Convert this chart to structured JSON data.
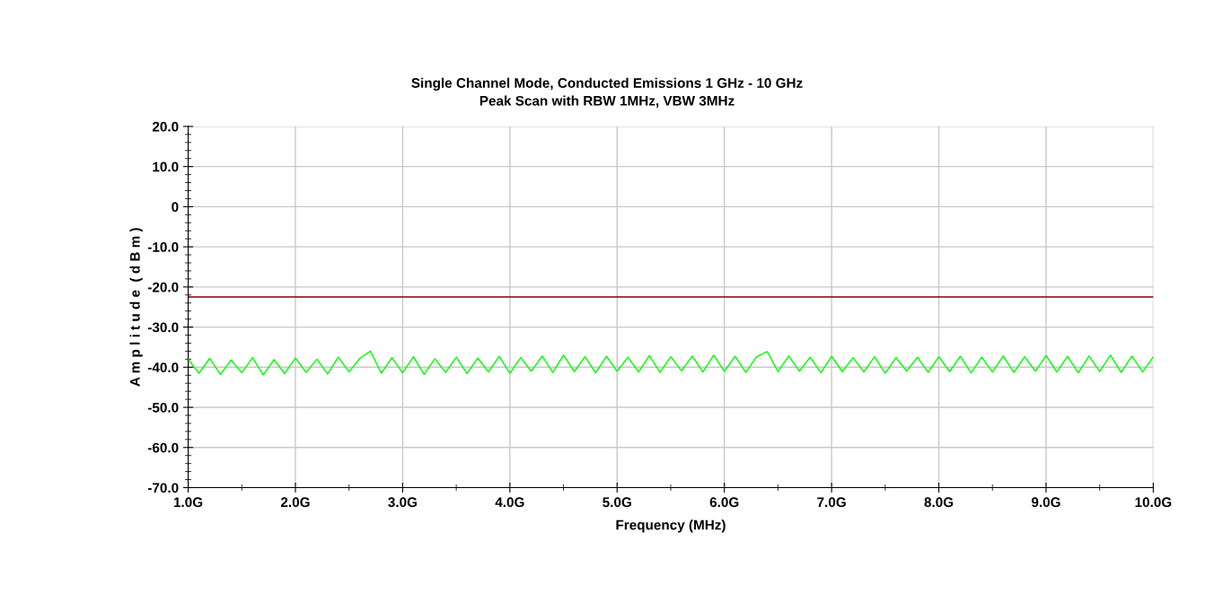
{
  "chart_data": {
    "type": "line",
    "subtitle": "Single Channel Mode, Conducted Emissions 1 GHz - 10 GHz\nPeak Scan with RBW 1MHz, VBW 3MHz",
    "xlabel": "Frequency (MHz)",
    "ylabel": "A m p l i t u d e  ( d B m )",
    "x": [
      1.0,
      1.1,
      1.2,
      1.3,
      1.4,
      1.5,
      1.6,
      1.7,
      1.8,
      1.9,
      2.0,
      2.1,
      2.2,
      2.3,
      2.4,
      2.5,
      2.6,
      2.7,
      2.8,
      2.9,
      3.0,
      3.1,
      3.2,
      3.3,
      3.4,
      3.5,
      3.6,
      3.7,
      3.8,
      3.9,
      4.0,
      4.1,
      4.2,
      4.3,
      4.4,
      4.5,
      4.6,
      4.7,
      4.8,
      4.9,
      5.0,
      5.1,
      5.2,
      5.3,
      5.4,
      5.5,
      5.6,
      5.7,
      5.8,
      5.9,
      6.0,
      6.1,
      6.2,
      6.3,
      6.4,
      6.5,
      6.6,
      6.7,
      6.8,
      6.9,
      7.0,
      7.1,
      7.2,
      7.3,
      7.4,
      7.5,
      7.6,
      7.7,
      7.8,
      7.9,
      8.0,
      8.1,
      8.2,
      8.3,
      8.4,
      8.5,
      8.6,
      8.7,
      8.8,
      8.9,
      9.0,
      9.1,
      9.2,
      9.3,
      9.4,
      9.5,
      9.6,
      9.7,
      9.8,
      9.9,
      10.0
    ],
    "series": [
      {
        "color": "#00ff00",
        "values": [
          -38.0,
          -41.5,
          -37.8,
          -41.8,
          -38.2,
          -41.4,
          -37.6,
          -41.9,
          -38.1,
          -41.6,
          -37.7,
          -41.3,
          -38.0,
          -41.7,
          -37.5,
          -41.2,
          -37.8,
          -36.0,
          -41.5,
          -37.6,
          -41.4,
          -37.4,
          -41.8,
          -37.9,
          -41.3,
          -37.5,
          -41.6,
          -37.7,
          -41.2,
          -37.3,
          -41.5,
          -37.6,
          -41.0,
          -37.2,
          -41.3,
          -37.0,
          -41.1,
          -37.4,
          -41.4,
          -37.3,
          -41.0,
          -37.5,
          -41.2,
          -37.1,
          -41.3,
          -37.4,
          -40.9,
          -37.2,
          -41.2,
          -37.0,
          -41.0,
          -37.3,
          -41.3,
          -37.4,
          -36.1,
          -41.1,
          -37.2,
          -41.0,
          -37.5,
          -41.4,
          -37.3,
          -41.1,
          -37.6,
          -41.2,
          -37.4,
          -41.5,
          -37.6,
          -41.0,
          -37.5,
          -41.3,
          -37.4,
          -41.1,
          -37.3,
          -41.4,
          -37.5,
          -41.2,
          -37.2,
          -41.3,
          -37.4,
          -41.0,
          -37.1,
          -41.2,
          -37.3,
          -41.4,
          -37.2,
          -41.1,
          -37.0,
          -41.3,
          -37.2,
          -41.2,
          -37.4
        ]
      }
    ],
    "ref_lines": [
      {
        "axis": "y",
        "value": -22.5,
        "color": "#800000"
      }
    ],
    "xlim": [
      1.0,
      10.0
    ],
    "xticks": [
      {
        "value": 1,
        "label": "1.0G"
      },
      {
        "value": 2,
        "label": "2.0G"
      },
      {
        "value": 3,
        "label": "3.0G"
      },
      {
        "value": 4,
        "label": "4.0G"
      },
      {
        "value": 5,
        "label": "5.0G"
      },
      {
        "value": 6,
        "label": "6.0G"
      },
      {
        "value": 7,
        "label": "7.0G"
      },
      {
        "value": 8,
        "label": "8.0G"
      },
      {
        "value": 9,
        "label": "9.0G"
      },
      {
        "value": 10,
        "label": "10.0G"
      }
    ],
    "ylim": [
      -70,
      20
    ],
    "yticks": [
      {
        "value": 20,
        "label": "20.0"
      },
      {
        "value": 10,
        "label": "10.0"
      },
      0,
      {
        "value": -10,
        "label": "-10.0"
      },
      {
        "value": -20,
        "label": "-20.0"
      },
      {
        "value": -30,
        "label": "-30.0"
      },
      {
        "value": -40,
        "label": "-40.0"
      },
      {
        "value": -50,
        "label": "-50.0"
      },
      {
        "value": -60,
        "label": "-60.0"
      },
      {
        "value": -70,
        "label": "-70.0"
      }
    ],
    "grid": true,
    "marker": "none",
    "line_style": "solid"
  }
}
